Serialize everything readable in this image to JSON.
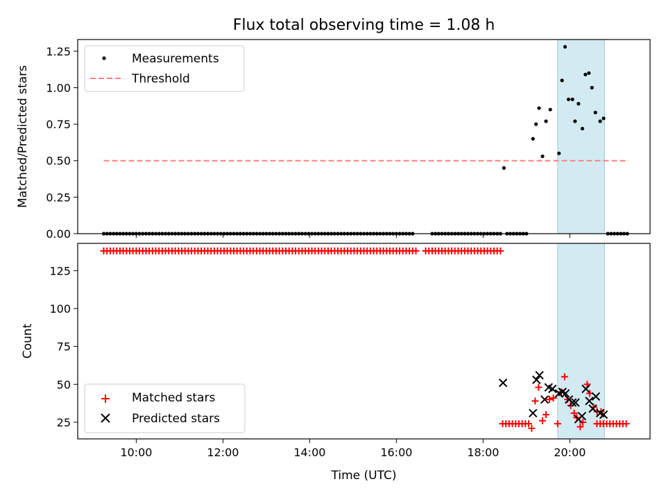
{
  "chart_data": [
    {
      "type": "scatter",
      "title": "Flux total observing time = 1.08 h",
      "ylabel": "Matched/Predicted stars",
      "xlabel": "",
      "xlim": [
        8.65,
        21.85
      ],
      "ylim": [
        0.0,
        1.33
      ],
      "xticks": [
        10,
        12,
        14,
        16,
        18,
        20
      ],
      "xtick_labels": [
        "",
        "",
        "",
        "",
        "",
        ""
      ],
      "yticks": [
        0.0,
        0.25,
        0.5,
        0.75,
        1.0,
        1.25
      ],
      "ytick_labels": [
        "0.00",
        "0.25",
        "0.50",
        "0.75",
        "1.00",
        "1.25"
      ],
      "shaded_span": [
        19.72,
        20.8
      ],
      "series": [
        {
          "name": "Measurements",
          "marker": "dot",
          "color": "#000000",
          "zero_run": {
            "start": 9.25,
            "end": 21.35,
            "step": 0.075,
            "gaps": [
              [
                16.4,
                16.75
              ],
              [
                18.45,
                18.5
              ],
              [
                19.05,
                19.75
              ],
              [
                19.75,
                20.85
              ]
            ]
          },
          "points": [
            [
              18.48,
              0.45
            ],
            [
              19.15,
              0.65
            ],
            [
              19.22,
              0.75
            ],
            [
              19.29,
              0.86
            ],
            [
              19.37,
              0.53
            ],
            [
              19.45,
              0.77
            ],
            [
              19.55,
              0.85
            ],
            [
              19.75,
              0.55
            ],
            [
              19.82,
              1.05
            ],
            [
              19.89,
              1.28
            ],
            [
              19.97,
              0.92
            ],
            [
              20.06,
              0.92
            ],
            [
              20.12,
              0.77
            ],
            [
              20.2,
              0.89
            ],
            [
              20.29,
              0.72
            ],
            [
              20.36,
              1.09
            ],
            [
              20.44,
              1.1
            ],
            [
              20.51,
              1.0
            ],
            [
              20.59,
              0.83
            ],
            [
              20.7,
              0.77
            ],
            [
              20.78,
              0.79
            ]
          ]
        },
        {
          "name": "Threshold",
          "style": "dashed",
          "color": "#ff7f7f",
          "x": [
            9.25,
            21.35
          ],
          "y": [
            0.5,
            0.5
          ]
        }
      ],
      "legend": {
        "position": "top-left",
        "entries": [
          "Measurements",
          "Threshold"
        ]
      }
    },
    {
      "type": "scatter",
      "xlabel": "Time (UTC)",
      "ylabel": "Count",
      "xlim": [
        8.65,
        21.85
      ],
      "ylim": [
        14,
        143
      ],
      "xticks": [
        10,
        12,
        14,
        16,
        18,
        20
      ],
      "xtick_labels": [
        "10:00",
        "12:00",
        "14:00",
        "16:00",
        "18:00",
        "20:00"
      ],
      "yticks": [
        25,
        50,
        75,
        100,
        125
      ],
      "ytick_labels": [
        "25",
        "50",
        "75",
        "100",
        "125"
      ],
      "shaded_span": [
        19.72,
        20.8
      ],
      "series": [
        {
          "name": "Matched stars",
          "marker": "plus",
          "color": "#ff0000",
          "run_138": {
            "start": 9.25,
            "end": 18.4,
            "step": 0.075,
            "gaps": [
              [
                16.45,
                16.6
              ]
            ]
          },
          "run_24": {
            "start": 18.45,
            "end": 21.3,
            "step": 0.075,
            "gaps": [
              [
                19.1,
                20.55
              ]
            ]
          },
          "points": [
            [
              19.12,
              21
            ],
            [
              19.2,
              39
            ],
            [
              19.28,
              48
            ],
            [
              19.37,
              26
            ],
            [
              19.45,
              30
            ],
            [
              19.53,
              40
            ],
            [
              19.62,
              41
            ],
            [
              19.72,
              24
            ],
            [
              19.8,
              45
            ],
            [
              19.88,
              55
            ],
            [
              19.95,
              40
            ],
            [
              20.02,
              36
            ],
            [
              20.1,
              31
            ],
            [
              20.16,
              28
            ],
            [
              20.24,
              22
            ],
            [
              20.3,
              25
            ],
            [
              20.4,
              50
            ],
            [
              20.46,
              44
            ],
            [
              20.55,
              35
            ],
            [
              20.63,
              32
            ],
            [
              20.72,
              32
            ]
          ]
        },
        {
          "name": "Predicted stars",
          "marker": "x",
          "color": "#000000",
          "points": [
            [
              18.46,
              51
            ],
            [
              19.15,
              31
            ],
            [
              19.23,
              53
            ],
            [
              19.3,
              56
            ],
            [
              19.42,
              40
            ],
            [
              19.51,
              48
            ],
            [
              19.6,
              47
            ],
            [
              19.75,
              44
            ],
            [
              19.83,
              45
            ],
            [
              19.9,
              44
            ],
            [
              19.98,
              40
            ],
            [
              20.06,
              38
            ],
            [
              20.13,
              38
            ],
            [
              20.2,
              27
            ],
            [
              20.28,
              29
            ],
            [
              20.37,
              47
            ],
            [
              20.45,
              39
            ],
            [
              20.53,
              34
            ],
            [
              20.6,
              42
            ],
            [
              20.7,
              31
            ],
            [
              20.78,
              30
            ]
          ]
        }
      ],
      "legend": {
        "position": "bottom-left",
        "entries": [
          "Matched stars",
          "Predicted stars"
        ]
      }
    }
  ]
}
